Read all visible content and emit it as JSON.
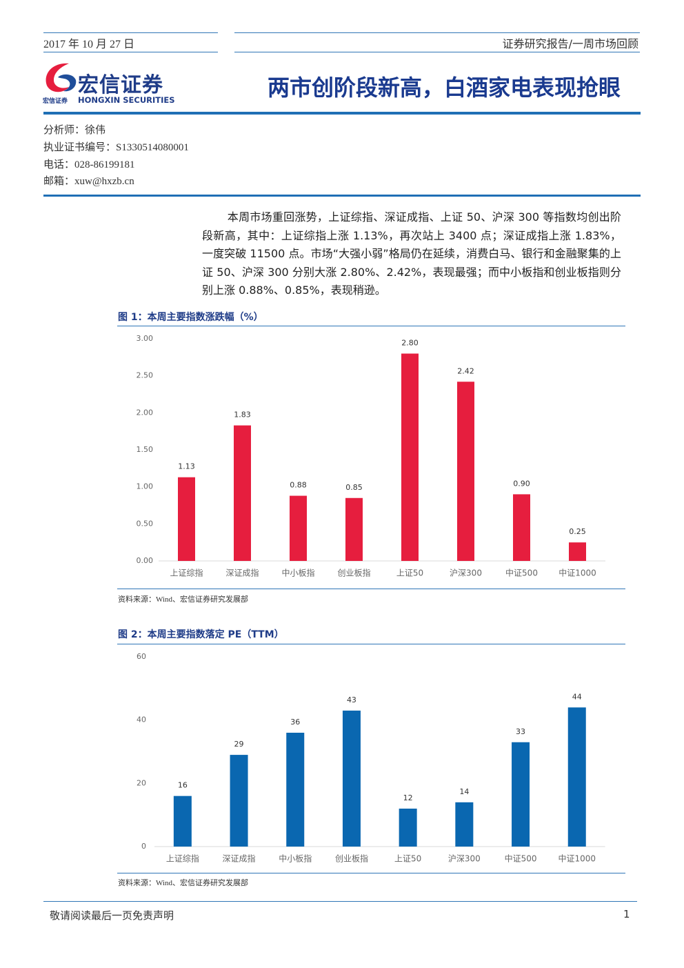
{
  "header": {
    "date": "2017 年 10 月 27 日",
    "report_type": "证券研究报告/一周市场回顾",
    "logo_name": "宏信证券",
    "logo_english": "HONGXIN SECURITIES",
    "logo_small": "宏信证券",
    "title": "两市创阶段新高，白酒家电表现抢眼"
  },
  "analyst": [
    "分析师：徐伟",
    "执业证书编号：S1330514080001",
    "电话：028-86199181",
    "邮箱：xuw@hxzb.cn"
  ],
  "body": "本周市场重回涨势，上证综指、深证成指、上证 50、沪深 300 等指数均创出阶段新高，其中：上证综指上涨 1.13%，再次站上 3400 点；深证成指上涨 1.83%，一度突破 11500 点。市场“大强小弱”格局仍在延续，消费白马、银行和金融聚集的上证 50、沪深 300 分别大涨 2.80%、2.42%，表现最强；而中小板指和创业板指则分别上涨 0.88%、0.85%，表现稍逊。",
  "chart_data": [
    {
      "type": "bar",
      "title": "图 1：本周主要指数涨跌幅（%）",
      "source": "资料来源：Wind、宏信证券研究发展部",
      "categories": [
        "上证综指",
        "深证成指",
        "中小板指",
        "创业板指",
        "上证50",
        "沪深300",
        "中证500",
        "中证1000"
      ],
      "values": [
        1.13,
        1.83,
        0.88,
        0.85,
        2.8,
        2.42,
        0.9,
        0.25
      ],
      "value_labels": [
        "1.13",
        "1.83",
        "0.88",
        "0.85",
        "2.80",
        "2.42",
        "0.90",
        "0.25"
      ],
      "color": "#e61e3e",
      "grid": false,
      "ylim": [
        0,
        3
      ],
      "yticks": [
        {
          "value": 0,
          "label": "0.00"
        },
        {
          "value": 0.5,
          "label": "0.50"
        },
        {
          "value": 1,
          "label": "1.00"
        },
        {
          "value": 1.5,
          "label": "1.50"
        },
        {
          "value": 2,
          "label": "2.00"
        },
        {
          "value": 2.5,
          "label": "2.50"
        },
        {
          "value": 3,
          "label": "3.00"
        }
      ]
    },
    {
      "type": "bar",
      "title": "图 2：本周主要指数落定 PE（TTM）",
      "source": "资料来源：Wind、宏信证券研究发展部",
      "categories": [
        "上证综指",
        "深证成指",
        "中小板指",
        "创业板指",
        "上证50",
        "沪深300",
        "中证500",
        "中证1000"
      ],
      "values": [
        16,
        29,
        36,
        43,
        12,
        14,
        33,
        44
      ],
      "color": "#0a67b0",
      "grid": false,
      "ylim": [
        0,
        60
      ],
      "yticks": [
        0,
        20,
        40,
        60
      ]
    }
  ],
  "footer": {
    "disclaimer": "敬请阅读最后一页免责声明",
    "page": "1"
  }
}
